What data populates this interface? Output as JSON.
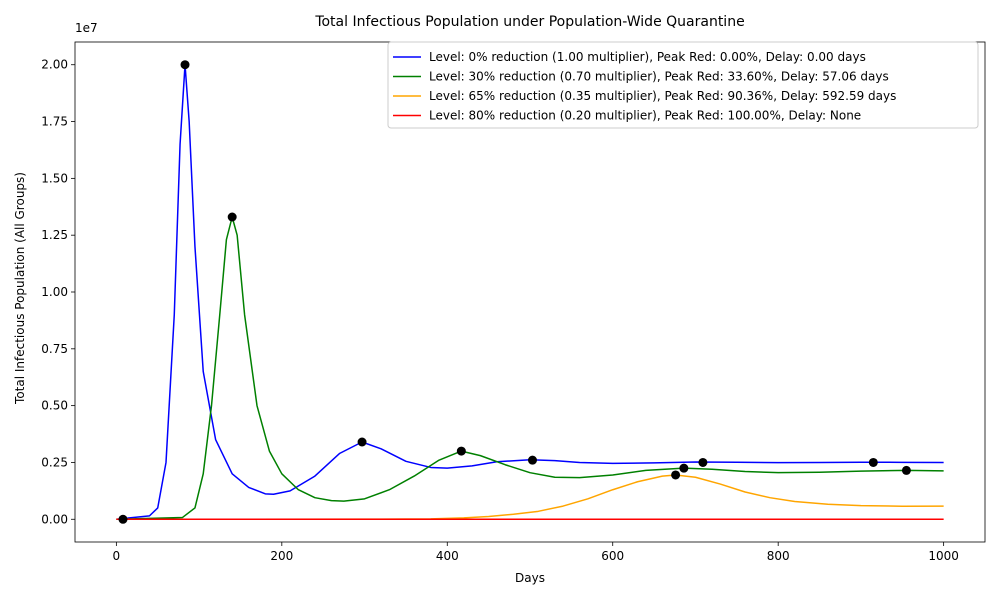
{
  "chart_data": {
    "type": "line",
    "title": "Total Infectious Population under Population-Wide Quarantine",
    "xlabel": "Days",
    "ylabel": "Total Infectious Population (All Groups)",
    "offset_text": "1e7",
    "xlim": [
      -50,
      1050
    ],
    "ylim": [
      -1000000,
      21000000
    ],
    "xticks": [
      0,
      200,
      400,
      600,
      800,
      1000
    ],
    "xtick_labels": [
      "0",
      "200",
      "400",
      "600",
      "800",
      "1000"
    ],
    "yticks": [
      0,
      2500000,
      5000000,
      7500000,
      10000000,
      12500000,
      15000000,
      17500000,
      20000000
    ],
    "ytick_labels": [
      "0.00",
      "0.25",
      "0.50",
      "0.75",
      "1.00",
      "1.25",
      "1.50",
      "1.75",
      "2.00"
    ],
    "legend_position": "top-right",
    "grid": false,
    "series": [
      {
        "name": "Level: 0% reduction (1.00 multiplier), Peak Red: 0.00%, Delay: 0.00 days",
        "color": "#0000ff",
        "points": [
          [
            0,
            0
          ],
          [
            40,
            150000
          ],
          [
            50,
            500000
          ],
          [
            60,
            2500000
          ],
          [
            70,
            9000000
          ],
          [
            77,
            16500000
          ],
          [
            83,
            20000000
          ],
          [
            88,
            17500000
          ],
          [
            95,
            12000000
          ],
          [
            105,
            6500000
          ],
          [
            120,
            3500000
          ],
          [
            140,
            2000000
          ],
          [
            160,
            1400000
          ],
          [
            180,
            1120000
          ],
          [
            190,
            1100000
          ],
          [
            210,
            1250000
          ],
          [
            240,
            1900000
          ],
          [
            270,
            2900000
          ],
          [
            297,
            3400000
          ],
          [
            320,
            3100000
          ],
          [
            350,
            2550000
          ],
          [
            380,
            2280000
          ],
          [
            400,
            2250000
          ],
          [
            430,
            2350000
          ],
          [
            460,
            2530000
          ],
          [
            500,
            2620000
          ],
          [
            530,
            2580000
          ],
          [
            560,
            2500000
          ],
          [
            600,
            2460000
          ],
          [
            650,
            2480000
          ],
          [
            700,
            2520000
          ],
          [
            750,
            2510000
          ],
          [
            800,
            2490000
          ],
          [
            850,
            2500000
          ],
          [
            900,
            2510000
          ],
          [
            950,
            2505000
          ],
          [
            1000,
            2500000
          ]
        ],
        "markers": [
          [
            8,
            0
          ],
          [
            83,
            20000000
          ],
          [
            297,
            3400000
          ],
          [
            503,
            2600000
          ],
          [
            709,
            2500000
          ],
          [
            915,
            2500000
          ]
        ]
      },
      {
        "name": "Level: 30% reduction (0.70 multiplier), Peak Red: 33.60%, Delay: 57.06 days",
        "color": "#008000",
        "points": [
          [
            0,
            0
          ],
          [
            80,
            80000
          ],
          [
            95,
            500000
          ],
          [
            105,
            2000000
          ],
          [
            115,
            5000000
          ],
          [
            125,
            9000000
          ],
          [
            133,
            12300000
          ],
          [
            140,
            13300000
          ],
          [
            146,
            12500000
          ],
          [
            155,
            9000000
          ],
          [
            170,
            5000000
          ],
          [
            185,
            3000000
          ],
          [
            200,
            2000000
          ],
          [
            220,
            1300000
          ],
          [
            240,
            950000
          ],
          [
            260,
            820000
          ],
          [
            275,
            800000
          ],
          [
            300,
            900000
          ],
          [
            330,
            1300000
          ],
          [
            360,
            1900000
          ],
          [
            390,
            2600000
          ],
          [
            417,
            3000000
          ],
          [
            440,
            2800000
          ],
          [
            470,
            2400000
          ],
          [
            500,
            2050000
          ],
          [
            530,
            1850000
          ],
          [
            560,
            1830000
          ],
          [
            600,
            1950000
          ],
          [
            640,
            2150000
          ],
          [
            686,
            2250000
          ],
          [
            720,
            2200000
          ],
          [
            760,
            2100000
          ],
          [
            800,
            2050000
          ],
          [
            850,
            2070000
          ],
          [
            900,
            2120000
          ],
          [
            955,
            2150000
          ],
          [
            1000,
            2130000
          ]
        ],
        "markers": [
          [
            140,
            13300000
          ],
          [
            417,
            3000000
          ],
          [
            686,
            2250000
          ],
          [
            955,
            2150000
          ]
        ]
      },
      {
        "name": "Level: 65% reduction (0.35 multiplier), Peak Red: 90.36%, Delay: 592.59 days",
        "color": "#ffa500",
        "points": [
          [
            0,
            0
          ],
          [
            300,
            5000
          ],
          [
            380,
            20000
          ],
          [
            420,
            60000
          ],
          [
            450,
            120000
          ],
          [
            480,
            220000
          ],
          [
            510,
            350000
          ],
          [
            540,
            580000
          ],
          [
            570,
            900000
          ],
          [
            600,
            1300000
          ],
          [
            630,
            1650000
          ],
          [
            660,
            1900000
          ],
          [
            676,
            1950000
          ],
          [
            700,
            1850000
          ],
          [
            730,
            1550000
          ],
          [
            760,
            1200000
          ],
          [
            790,
            950000
          ],
          [
            820,
            780000
          ],
          [
            860,
            660000
          ],
          [
            900,
            600000
          ],
          [
            950,
            575000
          ],
          [
            1000,
            580000
          ]
        ],
        "markers": [
          [
            676,
            1950000
          ]
        ]
      },
      {
        "name": "Level: 80% reduction (0.20 multiplier), Peak Red: 100.00%, Delay: None",
        "color": "#ff0000",
        "points": [
          [
            0,
            0
          ],
          [
            1000,
            0
          ]
        ],
        "markers": []
      }
    ]
  }
}
